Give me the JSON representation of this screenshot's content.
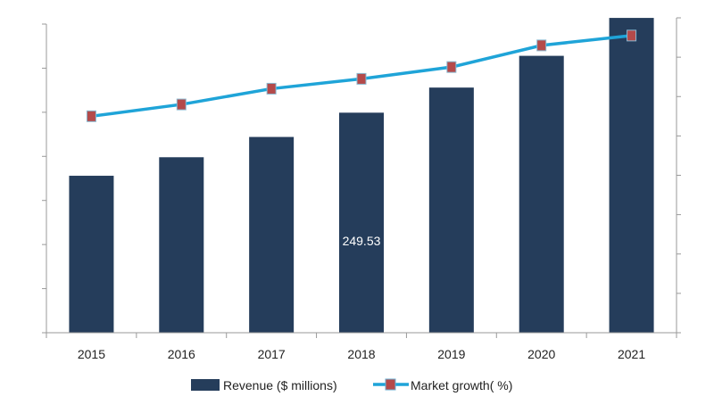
{
  "chart_data": {
    "type": "bar",
    "title": "",
    "xlabel": "",
    "ylabel": "",
    "categories": [
      "2015",
      "2016",
      "2017",
      "2018",
      "2019",
      "2020",
      "2021"
    ],
    "series": [
      {
        "name": "Revenue ($ millions)",
        "type": "bar",
        "axis": "left",
        "color": "#253d5b",
        "values": [
          178,
          199,
          222,
          249.53,
          278,
          314,
          357
        ]
      },
      {
        "name": "Market growth( %)",
        "type": "line",
        "axis": "right",
        "color": "#1fa4d8",
        "marker_color": "#b44a4a",
        "values": [
          5.5,
          5.8,
          6.2,
          6.45,
          6.75,
          7.3,
          7.55
        ]
      }
    ],
    "data_labels": [
      {
        "category": "2018",
        "text": "249.53"
      }
    ],
    "ylim_left": [
      0,
      350
    ],
    "ylim_right": [
      0,
      8
    ],
    "y_tick_labels_shown": false,
    "grid": false,
    "legend_position": "bottom"
  }
}
